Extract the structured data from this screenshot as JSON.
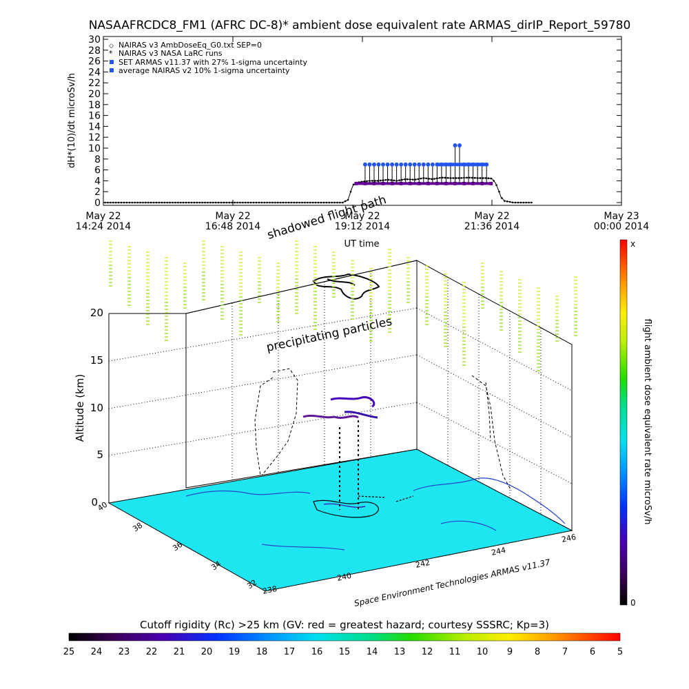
{
  "title": "NASAAFRCDC8_FM1 (AFRC DC-8)* ambient dose equivalent rate ARMAS_dirIP_Report_59780",
  "chart_data": [
    {
      "type": "line",
      "ylabel": "dH*(10)/dt microSv/h",
      "xlabel": "UT time",
      "ylim": [
        0,
        30
      ],
      "yticks": [
        "0",
        "2",
        "4",
        "6",
        "8",
        "10",
        "12",
        "14",
        "16",
        "18",
        "20",
        "22",
        "24",
        "26",
        "28",
        "30"
      ],
      "xlim_minutes": [
        864,
        1440
      ],
      "xticks": [
        {
          "minutes": 864,
          "date": "May 22",
          "time": "14:24 2014"
        },
        {
          "minutes": 1008,
          "date": "May 22",
          "time": "16:48 2014"
        },
        {
          "minutes": 1152,
          "date": "May 22",
          "time": "19:12 2014"
        },
        {
          "minutes": 1296,
          "date": "May 22",
          "time": "21:36 2014"
        },
        {
          "minutes": 1440,
          "date": "May 23",
          "time": "00:00 2014"
        }
      ],
      "legend": [
        "NAIRAS v3 AmbDoseEq_G0.txt SEP=0",
        "NAIRAS v3 NASA LaRC runs",
        "SET ARMAS v11.37 with 27% 1-sigma uncertainty",
        "average NAIRAS v2 10% 1-sigma uncertainty"
      ],
      "legend_position": "top-left",
      "series": [
        {
          "name": "NAIRAS v3 AmbDoseEq_G0.txt SEP=0",
          "color": "#000000",
          "x": [
            866,
            880,
            900,
            920,
            940,
            960,
            980,
            1000,
            1020,
            1040,
            1060,
            1080,
            1100,
            1120,
            1130,
            1136,
            1138,
            1140,
            1142,
            1145,
            1150,
            1160,
            1170,
            1180,
            1190,
            1200,
            1210,
            1220,
            1230,
            1240,
            1250,
            1260,
            1270,
            1280,
            1290,
            1296,
            1300,
            1304,
            1306,
            1310,
            1320,
            1330,
            1340
          ],
          "values": [
            0,
            0,
            0,
            0,
            0,
            0,
            0,
            0,
            0,
            0,
            0,
            0,
            0,
            0,
            0,
            0.5,
            1.5,
            2.5,
            3.3,
            3.6,
            3.8,
            4.0,
            4.0,
            4.2,
            4.0,
            4.3,
            4.2,
            4.5,
            4.3,
            4.6,
            4.5,
            4.5,
            4.6,
            4.5,
            4.5,
            4.4,
            3.6,
            2.0,
            1.0,
            0.3,
            0,
            0,
            0
          ]
        },
        {
          "name": "SET ARMAS v11.37 with 27% 1-sigma uncertainty",
          "color": "#2255ee",
          "x": [
            1155,
            1160,
            1165,
            1170,
            1175,
            1180,
            1185,
            1190,
            1195,
            1200,
            1205,
            1210,
            1215,
            1220,
            1225,
            1230,
            1235,
            1240,
            1245,
            1250,
            1255,
            1260,
            1265,
            1270,
            1275,
            1280,
            1285,
            1290
          ],
          "values": [
            7,
            7,
            7,
            7,
            7,
            7,
            7,
            7,
            7,
            7,
            7,
            7,
            7,
            7,
            7,
            7,
            7,
            7,
            7,
            7,
            10.5,
            10.5,
            7,
            7,
            7,
            7,
            7,
            7
          ]
        },
        {
          "name": "average NAIRAS v2 10% 1-sigma uncertainty",
          "color": "#660099",
          "x": [
            1145,
            1155,
            1165,
            1175,
            1185,
            1195,
            1205,
            1215,
            1225,
            1235,
            1245,
            1255,
            1265,
            1275,
            1285,
            1295
          ],
          "values": [
            3.5,
            3.5,
            3.5,
            3.5,
            3.5,
            3.5,
            3.5,
            3.5,
            3.5,
            3.5,
            3.5,
            3.5,
            3.5,
            3.5,
            3.5,
            3.5
          ]
        }
      ]
    }
  ],
  "plot3d": {
    "zlabel": "Altitude (km)",
    "zticks": [
      "0",
      "5",
      "10",
      "15",
      "20"
    ],
    "lat_ticks": [
      "40",
      "38",
      "36",
      "34",
      "32"
    ],
    "lon_ticks": [
      "238",
      "240",
      "242",
      "244",
      "246"
    ],
    "annotations": {
      "shadowed": "shadowed flight path",
      "precip": "precipitating particles",
      "credit": "Space Environment Technologies ARMAS v11.37"
    },
    "surface_color": "#1ee6f0",
    "colorbar": {
      "label": "flight ambient dose equivalent rate microSv/h",
      "top": "x",
      "bottom": "0"
    }
  },
  "rigidity": {
    "title": "Cutoff rigidity (Rc) >25 km (GV: red = greatest hazard; courtesy SSSRC; Kp=3)",
    "ticks": [
      "25",
      "24",
      "23",
      "22",
      "21",
      "20",
      "19",
      "18",
      "17",
      "16",
      "15",
      "14",
      "13",
      "12",
      "11",
      "10",
      "9",
      "8",
      "7",
      "6",
      "5"
    ]
  }
}
